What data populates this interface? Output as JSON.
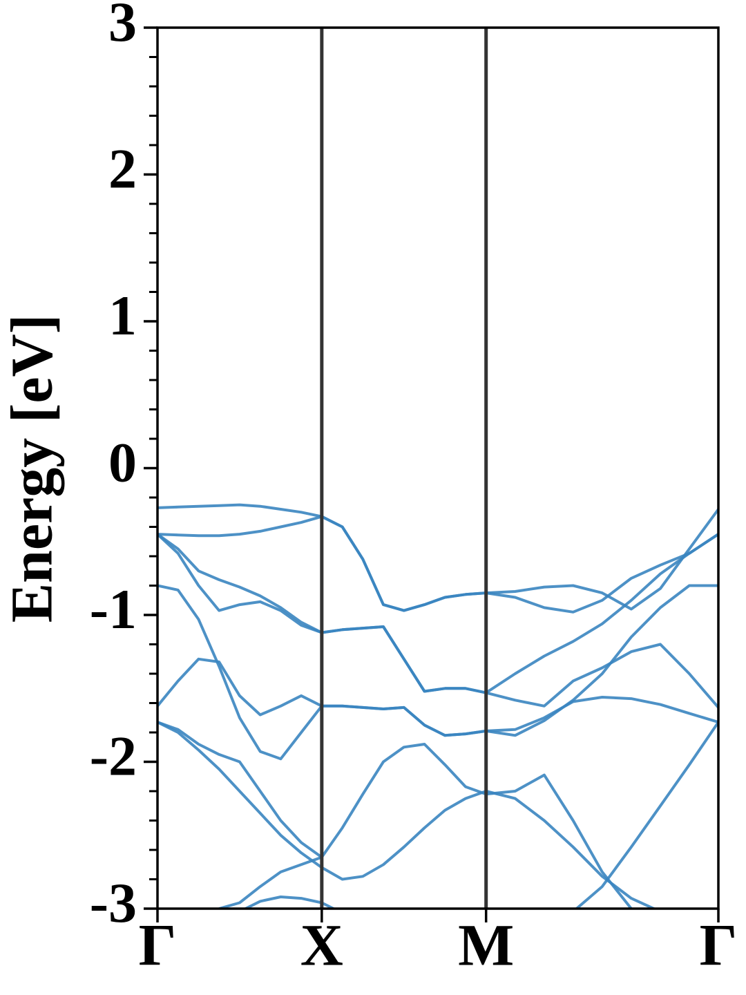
{
  "chart_data": {
    "type": "line",
    "ylabel": "Energy [eV]",
    "x": [
      0,
      0.125,
      0.25,
      0.375,
      0.5,
      0.625,
      0.75,
      0.875,
      1,
      1.125,
      1.25,
      1.375,
      1.5,
      1.625,
      1.75,
      1.875,
      2,
      2.177,
      2.354,
      2.53,
      2.707,
      2.884,
      3.061,
      3.237,
      3.414
    ],
    "xlim": [
      0,
      3.414
    ],
    "xticks": [
      {
        "value": 0,
        "label": "Γ"
      },
      {
        "value": 1,
        "label": "X"
      },
      {
        "value": 2,
        "label": "M"
      },
      {
        "value": 3.414,
        "label": "Γ"
      }
    ],
    "ylim": [
      -3,
      3
    ],
    "yticks": [
      -3,
      -2,
      -1,
      0,
      1,
      2,
      3
    ],
    "yminorticks": [
      -2.8,
      -2.6,
      -2.4,
      -2.2,
      -1.8,
      -1.6,
      -1.4,
      -1.2,
      -0.8,
      -0.6,
      -0.4,
      -0.2,
      0.2,
      0.4,
      0.6,
      0.8,
      1.2,
      1.4,
      1.6,
      1.8,
      2.2,
      2.4,
      2.6,
      2.8
    ],
    "vlines_color": "#333333",
    "series": [
      {
        "color": "#3a85c0",
        "values": [
          -0.27,
          -0.265,
          -0.26,
          -0.255,
          -0.25,
          -0.26,
          -0.28,
          -0.3,
          -0.33,
          -0.4,
          -0.62,
          -0.93,
          -0.97,
          -0.93,
          -0.88,
          -0.86,
          -0.85,
          -0.84,
          -0.81,
          -0.8,
          -0.85,
          -0.96,
          -0.82,
          -0.55,
          -0.28
        ]
      },
      {
        "color": "#3a85c0",
        "values": [
          -0.45,
          -0.455,
          -0.46,
          -0.46,
          -0.45,
          -0.43,
          -0.4,
          -0.37,
          -0.33,
          -0.4,
          -0.62,
          -0.93,
          -0.97,
          -0.93,
          -0.88,
          -0.86,
          -0.85,
          -0.88,
          -0.95,
          -0.98,
          -0.9,
          -0.75,
          -0.66,
          -0.58,
          -0.45
        ]
      },
      {
        "color": "#3a85c0",
        "values": [
          -0.45,
          -0.55,
          -0.7,
          -0.76,
          -0.81,
          -0.87,
          -0.95,
          -1.05,
          -1.12,
          -1.1,
          -1.09,
          -1.08,
          -1.3,
          -1.52,
          -1.5,
          -1.5,
          -1.53,
          -1.4,
          -1.28,
          -1.18,
          -1.06,
          -0.9,
          -0.72,
          -0.58,
          -0.45
        ]
      },
      {
        "color": "#3a85c0",
        "values": [
          -0.45,
          -0.58,
          -0.8,
          -0.97,
          -0.93,
          -0.91,
          -0.97,
          -1.07,
          -1.12,
          -1.1,
          -1.09,
          -1.08,
          -1.3,
          -1.52,
          -1.5,
          -1.5,
          -1.53,
          -1.58,
          -1.62,
          -1.45,
          -1.36,
          -1.25,
          -1.2,
          -1.4,
          -1.63
        ]
      },
      {
        "color": "#3a85c0",
        "values": [
          -0.8,
          -0.83,
          -1.03,
          -1.35,
          -1.7,
          -1.93,
          -1.98,
          -1.8,
          -1.62,
          -1.62,
          -1.63,
          -1.64,
          -1.63,
          -1.75,
          -1.82,
          -1.81,
          -1.79,
          -1.78,
          -1.7,
          -1.59,
          -1.56,
          -1.57,
          -1.61,
          -1.67,
          -1.73
        ]
      },
      {
        "color": "#3a85c0",
        "values": [
          -1.62,
          -1.45,
          -1.3,
          -1.32,
          -1.55,
          -1.68,
          -1.62,
          -1.55,
          -1.62,
          -1.62,
          -1.63,
          -1.64,
          -1.63,
          -1.75,
          -1.82,
          -1.81,
          -1.79,
          -1.82,
          -1.72,
          -1.58,
          -1.4,
          -1.15,
          -0.95,
          -0.8,
          -0.8
        ]
      },
      {
        "color": "#3a85c0",
        "values": [
          -1.73,
          -1.78,
          -1.88,
          -1.95,
          -2.0,
          -2.2,
          -2.4,
          -2.55,
          -2.65,
          -2.45,
          -2.22,
          -2.0,
          -1.9,
          -1.88,
          -2.02,
          -2.17,
          -2.22,
          -2.2,
          -2.09,
          -2.4,
          -2.75,
          -3.0,
          null,
          null,
          null
        ]
      },
      {
        "color": "#3a85c0",
        "values": [
          -1.73,
          -1.8,
          -1.92,
          -2.05,
          -2.2,
          -2.35,
          -2.5,
          -2.62,
          -2.72,
          -2.8,
          -2.78,
          -2.7,
          -2.58,
          -2.45,
          -2.33,
          -2.25,
          -2.2,
          -2.25,
          -2.4,
          -2.58,
          -2.78,
          -2.93,
          -3.02,
          null,
          null
        ]
      },
      {
        "color": "#3a85c0",
        "values": [
          null,
          null,
          null,
          null,
          null,
          null,
          null,
          null,
          null,
          null,
          null,
          null,
          null,
          null,
          null,
          null,
          null,
          null,
          null,
          -3.02,
          -2.85,
          -2.58,
          -2.3,
          -2.02,
          -1.73
        ]
      },
      {
        "color": "#3a85c0",
        "values": [
          null,
          null,
          null,
          -3.0,
          -2.96,
          -2.85,
          -2.75,
          -2.7,
          -2.65,
          null,
          null,
          null,
          null,
          null,
          null,
          null,
          null,
          null,
          null,
          null,
          null,
          null,
          null,
          null,
          null
        ]
      },
      {
        "color": "#3a85c0",
        "values": [
          null,
          null,
          null,
          null,
          -3.02,
          -2.95,
          -2.92,
          -2.93,
          -2.96,
          -3.03,
          null,
          null,
          null,
          null,
          null,
          null,
          null,
          null,
          null,
          null,
          null,
          null,
          null,
          null,
          null
        ]
      }
    ]
  }
}
